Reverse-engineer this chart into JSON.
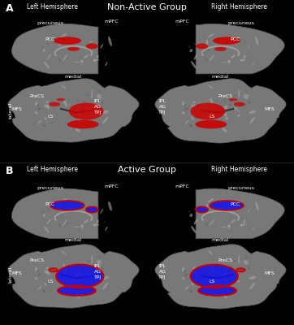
{
  "background_color": "#000000",
  "panel_A_title": "Non-Active Group",
  "panel_B_title": "Active Group",
  "panel_A_label": "A",
  "panel_B_label": "B",
  "left_hemi_label": "Left Hemisphere",
  "right_hemi_label": "Right Hemisphere",
  "medial_label": "medial",
  "lateral_label": "lateral",
  "overlay_color_A": "#cc0000",
  "overlay_color_B_fill": "#1010ee",
  "overlay_color_B_outline": "#cc0000",
  "text_color": "#ffffff",
  "brain_gray_base": "#888888",
  "brain_gray_dark": "#444444",
  "brain_gray_light": "#c0c0c0"
}
